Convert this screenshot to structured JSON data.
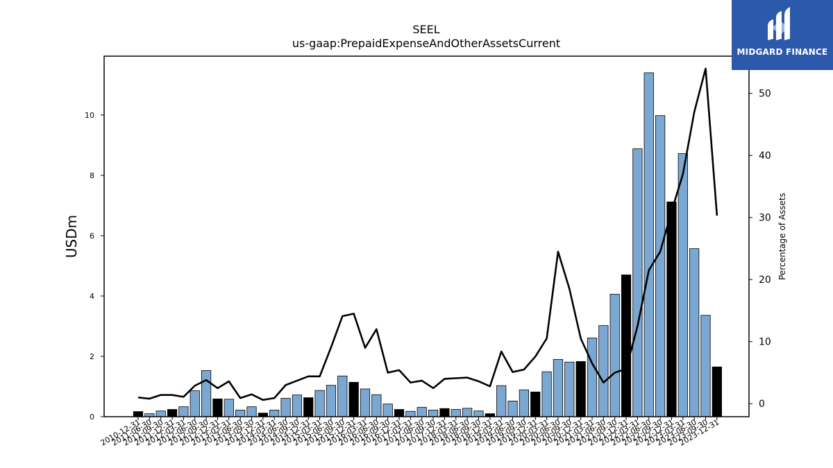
{
  "brand": {
    "name": "MIDGARD FINANCE",
    "bg_color": "#2d59ab"
  },
  "chart_data": {
    "type": "bar",
    "title": "SEEL",
    "subtitle": "us-gaap:PrepaidExpenseAndOtherAssetsCurrent",
    "ylabel": "USDm",
    "y2label": "Percentage of Assets",
    "ylim": [
      0,
      11.95
    ],
    "y2lim": [
      -2.1,
      56.0
    ],
    "yticks": [
      0,
      2,
      4,
      6,
      8,
      10
    ],
    "y2ticks": [
      0,
      10,
      20,
      30,
      40,
      50
    ],
    "colors": {
      "quarter_bar": "#7ba8d2",
      "year_end_bar": "#000000",
      "line": "#000000"
    },
    "categories": [
      "2010-12-31",
      "2011-06-30",
      "2011-09-30",
      "2011-12-31",
      "2012-03-31",
      "2012-06-30",
      "2012-09-30",
      "2012-12-31",
      "2013-03-31",
      "2013-06-30",
      "2013-09-30",
      "2013-12-31",
      "2014-03-31",
      "2014-06-30",
      "2014-09-30",
      "2014-12-31",
      "2015-03-31",
      "2015-06-30",
      "2015-09-30",
      "2015-12-31",
      "2016-03-31",
      "2016-06-30",
      "2016-09-30",
      "2016-12-31",
      "2017-03-31",
      "2017-06-30",
      "2017-09-30",
      "2017-12-31",
      "2018-03-31",
      "2018-06-30",
      "2018-09-30",
      "2018-12-31",
      "2019-03-31",
      "2019-06-30",
      "2019-09-30",
      "2019-12-31",
      "2020-03-31",
      "2020-06-30",
      "2020-09-30",
      "2020-12-31",
      "2021-03-31",
      "2021-06-30",
      "2021-09-30",
      "2021-12-31",
      "2022-03-31",
      "2022-06-30",
      "2022-09-30",
      "2022-12-31",
      "2023-03-31",
      "2023-06-30",
      "2023-09-30",
      "2023-12-31"
    ],
    "series": [
      {
        "kind": "bar",
        "values": [
          0.17,
          0.1,
          0.19,
          0.24,
          0.33,
          0.86,
          1.53,
          0.59,
          0.58,
          0.22,
          0.33,
          0.12,
          0.22,
          0.61,
          0.72,
          0.63,
          0.87,
          1.04,
          1.35,
          1.14,
          0.92,
          0.73,
          0.42,
          0.24,
          0.18,
          0.31,
          0.22,
          0.27,
          0.24,
          0.28,
          0.19,
          0.1,
          1.03,
          0.52,
          0.89,
          0.82,
          1.49,
          1.9,
          1.81,
          1.83,
          2.61,
          3.02,
          4.06,
          4.7,
          8.88,
          11.4,
          9.98,
          7.12,
          8.72,
          5.57,
          3.36,
          1.65
        ],
        "year_end": [
          true,
          false,
          false,
          true,
          false,
          false,
          false,
          true,
          false,
          false,
          false,
          true,
          false,
          false,
          false,
          true,
          false,
          false,
          false,
          true,
          false,
          false,
          false,
          true,
          false,
          false,
          false,
          true,
          false,
          false,
          false,
          true,
          false,
          false,
          false,
          true,
          false,
          false,
          false,
          true,
          false,
          false,
          false,
          true,
          false,
          false,
          false,
          true,
          false,
          false,
          false,
          true
        ]
      },
      {
        "kind": "line",
        "axis": "right",
        "values": [
          1.0,
          0.8,
          1.4,
          1.4,
          1.1,
          2.9,
          3.8,
          2.5,
          3.6,
          0.9,
          1.5,
          0.6,
          0.9,
          3.0,
          3.7,
          4.4,
          4.4,
          9.1,
          14.1,
          14.5,
          9.0,
          12.0,
          5.0,
          5.4,
          3.4,
          3.7,
          2.5,
          4.0,
          4.1,
          4.2,
          3.6,
          2.8,
          8.4,
          5.1,
          5.5,
          7.6,
          10.5,
          24.5,
          18.5,
          10.5,
          6.5,
          3.4,
          5.0,
          5.6,
          12.5,
          21.5,
          24.5,
          31.0,
          37.0,
          47.0,
          54.0,
          30.3
        ]
      }
    ]
  }
}
